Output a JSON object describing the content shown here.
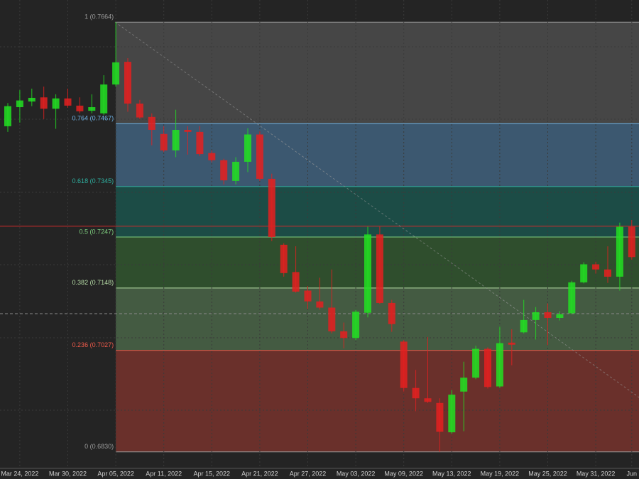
{
  "chart_data": {
    "type": "candlestick",
    "categories": [
      null,
      "Mar 24, 2022",
      null,
      null,
      null,
      "Mar 30, 2022",
      null,
      null,
      null,
      "Apr 05, 2022",
      null,
      null,
      null,
      "Apr 11, 2022",
      null,
      null,
      null,
      "Apr 15, 2022",
      null,
      null,
      null,
      "Apr 21, 2022",
      null,
      null,
      null,
      "Apr 27, 2022",
      null,
      null,
      null,
      "May 03, 2022",
      null,
      null,
      null,
      "May 09, 2022",
      null,
      null,
      null,
      "May 13, 2022",
      null,
      null,
      null,
      "May 19, 2022",
      null,
      null,
      null,
      "May 25, 2022",
      null,
      null,
      null,
      "May 31, 2022",
      null,
      null,
      "Jun"
    ],
    "open": [
      0.7462,
      0.7499,
      0.751,
      0.7518,
      0.7496,
      0.7516,
      0.7502,
      0.7492,
      0.7487,
      0.7543,
      0.7587,
      0.7506,
      0.748,
      0.7447,
      0.7415,
      0.7455,
      0.7451,
      0.741,
      0.7396,
      0.7356,
      0.7393,
      0.7446,
      0.736,
      0.7232,
      0.7179,
      0.7143,
      0.7122,
      0.711,
      0.7064,
      0.7051,
      0.71,
      0.7252,
      0.7119,
      0.7044,
      0.6954,
      0.6934,
      0.6925,
      0.6868,
      0.6947,
      0.6974,
      0.703,
      0.6957,
      0.7042,
      0.7062,
      0.7086,
      0.7101,
      0.709,
      0.7099,
      0.7159,
      0.7194,
      0.7184,
      0.717,
      0.7267
    ],
    "high": [
      0.7507,
      0.7532,
      0.7535,
      0.7539,
      0.7524,
      0.7535,
      0.7518,
      0.7524,
      0.7561,
      0.7664,
      0.7594,
      0.7513,
      0.7487,
      0.7462,
      0.7494,
      0.7462,
      0.7462,
      0.7415,
      0.7399,
      0.7402,
      0.7458,
      0.7452,
      0.737,
      0.7235,
      0.7229,
      0.7152,
      0.7168,
      0.7184,
      0.7081,
      0.7106,
      0.7267,
      0.7267,
      0.7125,
      0.7047,
      0.6989,
      0.7053,
      0.6934,
      0.695,
      0.7005,
      0.7036,
      0.7033,
      0.7073,
      0.7068,
      0.7125,
      0.7111,
      0.7118,
      0.7103,
      0.7162,
      0.7198,
      0.7199,
      0.7229,
      0.7275,
      0.728
    ],
    "low": [
      0.7451,
      0.7469,
      0.7501,
      0.7476,
      0.7457,
      0.7498,
      0.7487,
      0.7487,
      0.7484,
      0.7539,
      0.749,
      0.7476,
      0.7425,
      0.7412,
      0.7402,
      0.7407,
      0.7404,
      0.7392,
      0.7349,
      0.7349,
      0.7373,
      0.7356,
      0.7239,
      0.717,
      0.7139,
      0.7107,
      0.7106,
      0.706,
      0.7031,
      0.7047,
      0.7091,
      0.7117,
      0.7063,
      0.6947,
      0.6909,
      0.6925,
      0.683,
      0.6865,
      0.687,
      0.6971,
      0.6953,
      0.6954,
      0.6998,
      0.706,
      0.7048,
      0.7037,
      0.7085,
      0.7097,
      0.7157,
      0.7176,
      0.7158,
      0.7143,
      0.7203
    ],
    "close": [
      0.7501,
      0.7512,
      0.7517,
      0.7496,
      0.7516,
      0.7502,
      0.7491,
      0.7499,
      0.7543,
      0.7586,
      0.7506,
      0.7479,
      0.7455,
      0.7415,
      0.7455,
      0.7451,
      0.7408,
      0.7396,
      0.7357,
      0.7393,
      0.7446,
      0.736,
      0.7247,
      0.7177,
      0.7141,
      0.7122,
      0.711,
      0.7064,
      0.7051,
      0.7102,
      0.7252,
      0.7119,
      0.7078,
      0.6954,
      0.6934,
      0.6927,
      0.6869,
      0.6941,
      0.6974,
      0.703,
      0.6956,
      0.7041,
      0.7038,
      0.7086,
      0.7101,
      0.709,
      0.7097,
      0.7159,
      0.7194,
      0.7184,
      0.717,
      0.7267,
      0.7208
    ],
    "up_color": "#22e022",
    "down_color": "#e42020",
    "ylim": [
      0.6798,
      0.7707
    ],
    "price_line": 0.7268,
    "price_line_color": "#d42a2a",
    "fib_levels": [
      {
        "label": "1 (0.7664)",
        "value": 0.7664,
        "color": "#9a9a9a",
        "zone_color": "#464646"
      },
      {
        "label": "0.764 (0.7467)",
        "value": 0.7467,
        "color": "#6fb3e6",
        "zone_color": "#3c5870"
      },
      {
        "label": "0.618 (0.7345)",
        "value": 0.7345,
        "color": "#2fb0a0",
        "zone_color": "#1c4c46"
      },
      {
        "label": "0.5 (0.7247)",
        "value": 0.7247,
        "color": "#7fd07f",
        "zone_color": "#2f4e2d"
      },
      {
        "label": "0.382 (0.7148)",
        "value": 0.7148,
        "color": "#b6dca6",
        "zone_color": "#445b42"
      },
      {
        "label": "0.236 (0.7027)",
        "value": 0.7027,
        "color": "#ee5a4a",
        "zone_color": "#6a302b"
      },
      {
        "label": "0 (0.6830)",
        "value": 0.683,
        "color": "#9a9a9a"
      }
    ]
  }
}
